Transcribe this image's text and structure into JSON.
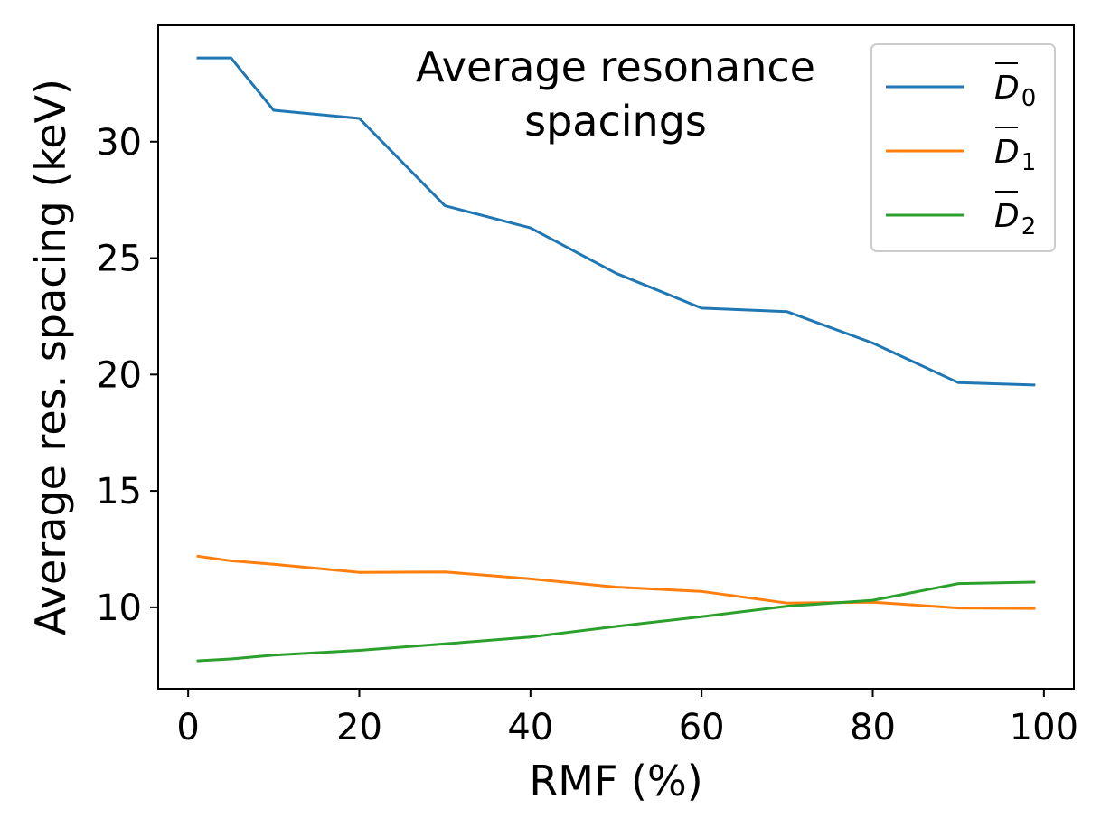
{
  "chart_data": {
    "type": "line",
    "title_lines": [
      "Average resonance",
      "spacings"
    ],
    "xlabel": "RMF (%)",
    "ylabel": "Average res. spacing (keV)",
    "xlim": [
      -3.5,
      103.5
    ],
    "ylim": [
      6.5,
      35.0
    ],
    "xticks": [
      0,
      20,
      40,
      60,
      80,
      100
    ],
    "yticks": [
      10,
      15,
      20,
      25,
      30
    ],
    "xtick_labels": [
      "0",
      "20",
      "40",
      "60",
      "80",
      "100"
    ],
    "ytick_labels": [
      "10",
      "15",
      "20",
      "25",
      "30"
    ],
    "grid": false,
    "legend_position": "top-right",
    "series": [
      {
        "name": "D̄0",
        "label_base": "D",
        "label_sub": "0",
        "color": "#1f77b4",
        "x": [
          1,
          5,
          10,
          20,
          30,
          40,
          50,
          60,
          70,
          80,
          90,
          99
        ],
        "values": [
          33.6,
          33.6,
          31.35,
          31.0,
          27.25,
          26.3,
          24.35,
          22.85,
          22.7,
          21.35,
          19.65,
          19.55
        ]
      },
      {
        "name": "D̄1",
        "label_base": "D",
        "label_sub": "1",
        "color": "#ff7f0e",
        "x": [
          1,
          5,
          10,
          20,
          30,
          40,
          50,
          60,
          70,
          80,
          90,
          99
        ],
        "values": [
          12.2,
          12.0,
          11.85,
          11.5,
          11.52,
          11.22,
          10.87,
          10.68,
          10.18,
          10.22,
          9.97,
          9.95
        ]
      },
      {
        "name": "D̄2",
        "label_base": "D",
        "label_sub": "2",
        "color": "#2ca02c",
        "x": [
          1,
          5,
          10,
          20,
          30,
          40,
          50,
          60,
          70,
          80,
          90,
          99
        ],
        "values": [
          7.7,
          7.78,
          7.95,
          8.15,
          8.43,
          8.72,
          9.18,
          9.6,
          10.05,
          10.3,
          11.02,
          11.08
        ]
      }
    ]
  }
}
